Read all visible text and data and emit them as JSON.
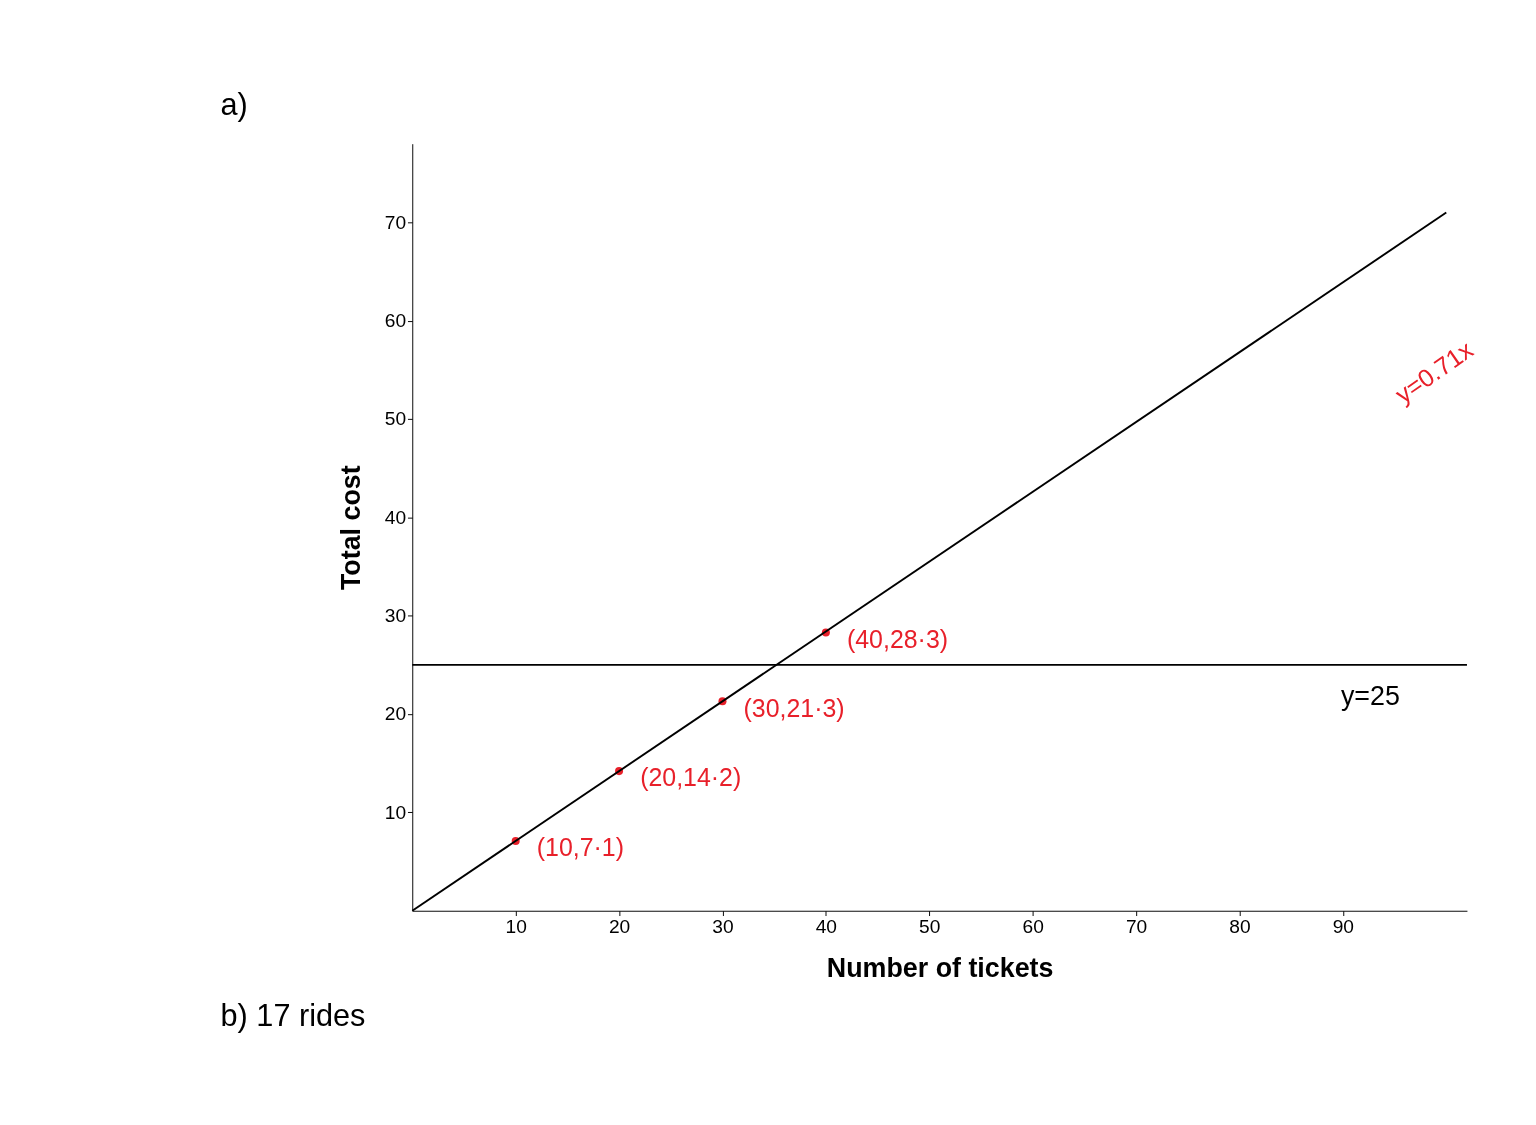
{
  "chart_data": {
    "type": "scatter",
    "xlabel": "Number of tickets",
    "ylabel": "Total cost",
    "xlim": [
      0,
      102
    ],
    "ylim": [
      0,
      78
    ],
    "xticks": [
      10,
      20,
      30,
      40,
      50,
      60,
      70,
      80,
      90
    ],
    "yticks": [
      10,
      20,
      30,
      40,
      50,
      60,
      70
    ],
    "grid": false,
    "marker": "circle",
    "series": [
      {
        "color": "#e8202a",
        "x": [
          10,
          20,
          30,
          40
        ],
        "values": [
          7.1,
          14.2,
          21.3,
          28.3
        ],
        "value_labels": [
          "(10,7·1)",
          "(20,14·2)",
          "(30,21·3)",
          "(40,28·3)"
        ]
      },
      {
        "type": "line",
        "name": "y=0.71x",
        "color": "#000000",
        "x": [
          0,
          100
        ],
        "values": [
          0,
          71
        ],
        "line_style": "solid",
        "marker": "none"
      }
    ],
    "ref_lines": [
      {
        "axis": "y",
        "value": 25,
        "label": "y=25",
        "color": "#000000"
      }
    ],
    "annotations": [
      "a)",
      "b) 17 rides"
    ]
  }
}
